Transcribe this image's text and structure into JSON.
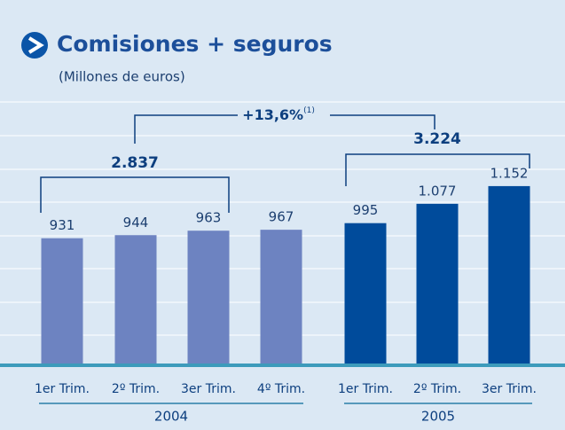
{
  "chart_data": {
    "type": "bar",
    "title": "Comisiones + seguros",
    "subtitle": "(Millones de euros)",
    "ylim": [
      400,
      1520
    ],
    "groups": [
      {
        "name": "2004",
        "color": "#6d83c1",
        "categories": [
          "1er Trim.",
          "2º Trim.",
          "3er Trim.",
          "4º Trim."
        ],
        "values": [
          931,
          944,
          963,
          967
        ],
        "value_labels": [
          "931",
          "944",
          "963",
          "967"
        ]
      },
      {
        "name": "2005",
        "color": "#004b9b",
        "categories": [
          "1er Trim.",
          "2º Trim.",
          "3er Trim."
        ],
        "values": [
          995,
          1077,
          1152
        ],
        "value_labels": [
          "995",
          "1.077",
          "1.152"
        ]
      }
    ],
    "annotations": [
      {
        "text": "2.837"
      },
      {
        "text": "3.224"
      },
      {
        "text": "+13,6%",
        "note": "(1)"
      }
    ]
  }
}
